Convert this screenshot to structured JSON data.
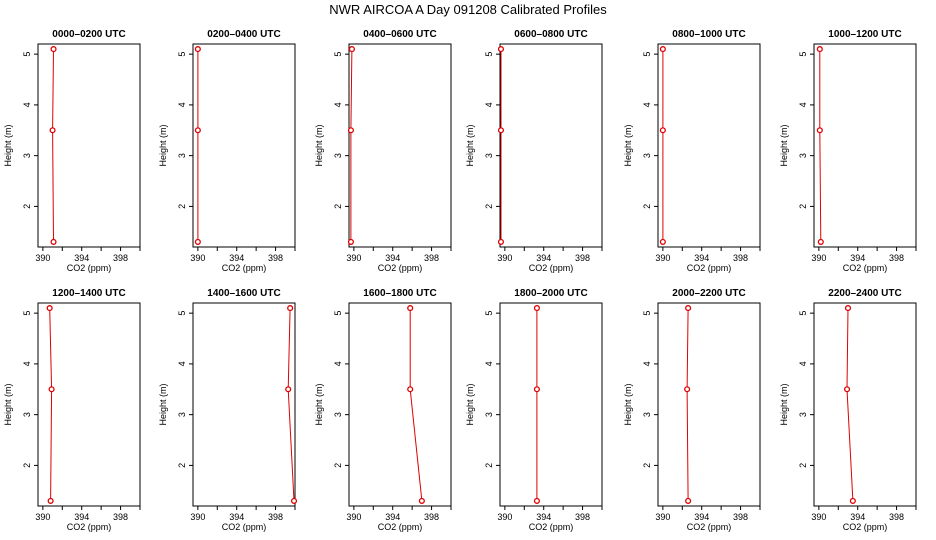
{
  "title": "NWR AIRCOA A  Day 091208  Calibrated Profiles",
  "chart_data": [
    {
      "type": "line",
      "title": "0000–0200 UTC",
      "xlabel": "CO2 (ppm)",
      "ylabel": "Height (m)",
      "xlim": [
        389.5,
        400
      ],
      "ylim": [
        1.2,
        5.2
      ],
      "x_ticks": [
        390,
        394,
        398
      ],
      "y_ticks": [
        2,
        3,
        4,
        5
      ],
      "series": [
        {
          "x": [
            391.1,
            391.0,
            391.1
          ],
          "y": [
            1.3,
            3.5,
            5.1
          ]
        }
      ]
    },
    {
      "type": "line",
      "title": "0200–0400 UTC",
      "xlabel": "CO2 (ppm)",
      "ylabel": "Height (m)",
      "xlim": [
        389.5,
        400
      ],
      "ylim": [
        1.2,
        5.2
      ],
      "x_ticks": [
        390,
        394,
        398
      ],
      "y_ticks": [
        2,
        3,
        4,
        5
      ],
      "series": [
        {
          "x": [
            390.0,
            390.0,
            390.0
          ],
          "y": [
            1.3,
            3.5,
            5.1
          ]
        }
      ]
    },
    {
      "type": "line",
      "title": "0400–0600 UTC",
      "xlabel": "CO2 (ppm)",
      "ylabel": "Height (m)",
      "xlim": [
        389.5,
        400
      ],
      "ylim": [
        1.2,
        5.2
      ],
      "x_ticks": [
        390,
        394,
        398
      ],
      "y_ticks": [
        2,
        3,
        4,
        5
      ],
      "series": [
        {
          "x": [
            389.7,
            389.7,
            389.8
          ],
          "y": [
            1.3,
            3.5,
            5.1
          ]
        }
      ]
    },
    {
      "type": "line",
      "title": "0600–0800 UTC",
      "xlabel": "CO2 (ppm)",
      "ylabel": "Height (m)",
      "xlim": [
        389.5,
        400
      ],
      "ylim": [
        1.2,
        5.2
      ],
      "x_ticks": [
        390,
        394,
        398
      ],
      "y_ticks": [
        2,
        3,
        4,
        5
      ],
      "series": [
        {
          "x": [
            389.6,
            389.6,
            389.6
          ],
          "y": [
            1.3,
            3.5,
            5.1
          ]
        }
      ]
    },
    {
      "type": "line",
      "title": "0800–1000 UTC",
      "xlabel": "CO2 (ppm)",
      "ylabel": "Height (m)",
      "xlim": [
        389.5,
        400
      ],
      "ylim": [
        1.2,
        5.2
      ],
      "x_ticks": [
        390,
        394,
        398
      ],
      "y_ticks": [
        2,
        3,
        4,
        5
      ],
      "series": [
        {
          "x": [
            390.0,
            390.0,
            390.0
          ],
          "y": [
            1.3,
            3.5,
            5.1
          ]
        }
      ]
    },
    {
      "type": "line",
      "title": "1000–1200 UTC",
      "xlabel": "CO2 (ppm)",
      "ylabel": "Height (m)",
      "xlim": [
        389.5,
        400
      ],
      "ylim": [
        1.2,
        5.2
      ],
      "x_ticks": [
        390,
        394,
        398
      ],
      "y_ticks": [
        2,
        3,
        4,
        5
      ],
      "series": [
        {
          "x": [
            390.2,
            390.1,
            390.1
          ],
          "y": [
            1.3,
            3.5,
            5.1
          ]
        }
      ]
    },
    {
      "type": "line",
      "title": "1200–1400 UTC",
      "xlabel": "CO2 (ppm)",
      "ylabel": "Height (m)",
      "xlim": [
        389.5,
        400
      ],
      "ylim": [
        1.2,
        5.2
      ],
      "x_ticks": [
        390,
        394,
        398
      ],
      "y_ticks": [
        2,
        3,
        4,
        5
      ],
      "series": [
        {
          "x": [
            390.8,
            390.9,
            390.7
          ],
          "y": [
            1.3,
            3.5,
            5.1
          ]
        }
      ]
    },
    {
      "type": "line",
      "title": "1400–1600 UTC",
      "xlabel": "CO2 (ppm)",
      "ylabel": "Height (m)",
      "xlim": [
        389.5,
        400
      ],
      "ylim": [
        1.2,
        5.2
      ],
      "x_ticks": [
        390,
        394,
        398
      ],
      "y_ticks": [
        2,
        3,
        4,
        5
      ],
      "series": [
        {
          "x": [
            399.9,
            399.3,
            399.5
          ],
          "y": [
            1.3,
            3.5,
            5.1
          ]
        }
      ]
    },
    {
      "type": "line",
      "title": "1600–1800 UTC",
      "xlabel": "CO2 (ppm)",
      "ylabel": "Height (m)",
      "xlim": [
        389.5,
        400
      ],
      "ylim": [
        1.2,
        5.2
      ],
      "x_ticks": [
        390,
        394,
        398
      ],
      "y_ticks": [
        2,
        3,
        4,
        5
      ],
      "series": [
        {
          "x": [
            397.0,
            395.8,
            395.8
          ],
          "y": [
            1.3,
            3.5,
            5.1
          ]
        }
      ]
    },
    {
      "type": "line",
      "title": "1800–2000 UTC",
      "xlabel": "CO2 (ppm)",
      "ylabel": "Height (m)",
      "xlim": [
        389.5,
        400
      ],
      "ylim": [
        1.2,
        5.2
      ],
      "x_ticks": [
        390,
        394,
        398
      ],
      "y_ticks": [
        2,
        3,
        4,
        5
      ],
      "series": [
        {
          "x": [
            393.3,
            393.3,
            393.3
          ],
          "y": [
            1.3,
            3.5,
            5.1
          ]
        }
      ]
    },
    {
      "type": "line",
      "title": "2000–2200 UTC",
      "xlabel": "CO2 (ppm)",
      "ylabel": "Height (m)",
      "xlim": [
        389.5,
        400
      ],
      "ylim": [
        1.2,
        5.2
      ],
      "x_ticks": [
        390,
        394,
        398
      ],
      "y_ticks": [
        2,
        3,
        4,
        5
      ],
      "series": [
        {
          "x": [
            392.6,
            392.5,
            392.6
          ],
          "y": [
            1.3,
            3.5,
            5.1
          ]
        }
      ]
    },
    {
      "type": "line",
      "title": "2200–2400 UTC",
      "xlabel": "CO2 (ppm)",
      "ylabel": "Height (m)",
      "xlim": [
        389.5,
        400
      ],
      "ylim": [
        1.2,
        5.2
      ],
      "x_ticks": [
        390,
        394,
        398
      ],
      "y_ticks": [
        2,
        3,
        4,
        5
      ],
      "series": [
        {
          "x": [
            393.5,
            392.9,
            393.0
          ],
          "y": [
            1.3,
            3.5,
            5.1
          ]
        }
      ]
    }
  ],
  "colors": {
    "series": "#e00000",
    "frame": "#000000"
  }
}
